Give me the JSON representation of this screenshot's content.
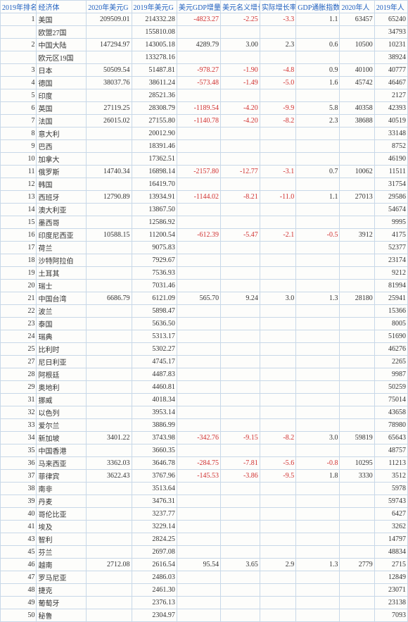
{
  "columns": [
    "2019年排名",
    "经济体",
    "2020年美元G",
    "2019年美元G",
    "美元GDP增量",
    "美元名义增长",
    "实际增长率",
    "GDP通胀指数",
    "2020年人",
    "2019年人"
  ],
  "column_colors": "#2060c0",
  "border_color": "#c8d8e8",
  "background_color": "#fdfdfb",
  "negative_color": "#d03030",
  "highlight_names": [
    "中国大陆",
    "中国台湾",
    "中国香港"
  ],
  "rows": [
    {
      "rank": 1,
      "name": "美国",
      "g2020": "209509.01",
      "g2019": "214332.28",
      "diff": "-4823.27",
      "nom": "-2.25",
      "real": "-3.3",
      "defl": "1.1",
      "pc20": "63457",
      "pc19": "65240"
    },
    {
      "rank": "",
      "name": "欧盟27国",
      "g2020": "",
      "g2019": "155810.08",
      "diff": "",
      "nom": "",
      "real": "",
      "defl": "",
      "pc20": "",
      "pc19": "34793"
    },
    {
      "rank": 2,
      "name": "中国大陆",
      "g2020": "147294.97",
      "g2019": "143005.18",
      "diff": "4289.79",
      "nom": "3.00",
      "real": "2.3",
      "defl": "0.6",
      "pc20": "10500",
      "pc19": "10231"
    },
    {
      "rank": "",
      "name": "欧元区19国",
      "g2020": "",
      "g2019": "133278.16",
      "diff": "",
      "nom": "",
      "real": "",
      "defl": "",
      "pc20": "",
      "pc19": "38924"
    },
    {
      "rank": 3,
      "name": "日本",
      "g2020": "50509.54",
      "g2019": "51487.81",
      "diff": "-978.27",
      "nom": "-1.90",
      "real": "-4.8",
      "defl": "0.9",
      "pc20": "40100",
      "pc19": "40777"
    },
    {
      "rank": 4,
      "name": "德国",
      "g2020": "38037.76",
      "g2019": "38611.24",
      "diff": "-573.48",
      "nom": "-1.49",
      "real": "-5.0",
      "defl": "1.6",
      "pc20": "45742",
      "pc19": "46467"
    },
    {
      "rank": 5,
      "name": "印度",
      "g2020": "",
      "g2019": "28521.36",
      "diff": "",
      "nom": "",
      "real": "",
      "defl": "",
      "pc20": "",
      "pc19": "2127"
    },
    {
      "rank": 6,
      "name": "英国",
      "g2020": "27119.25",
      "g2019": "28308.79",
      "diff": "-1189.54",
      "nom": "-4.20",
      "real": "-9.9",
      "defl": "5.8",
      "pc20": "40358",
      "pc19": "42393"
    },
    {
      "rank": 7,
      "name": "法国",
      "g2020": "26015.02",
      "g2019": "27155.80",
      "diff": "-1140.78",
      "nom": "-4.20",
      "real": "-8.2",
      "defl": "2.3",
      "pc20": "38688",
      "pc19": "40519"
    },
    {
      "rank": 8,
      "name": "意大利",
      "g2020": "",
      "g2019": "20012.90",
      "diff": "",
      "nom": "",
      "real": "",
      "defl": "",
      "pc20": "",
      "pc19": "33148"
    },
    {
      "rank": 9,
      "name": "巴西",
      "g2020": "",
      "g2019": "18391.46",
      "diff": "",
      "nom": "",
      "real": "",
      "defl": "",
      "pc20": "",
      "pc19": "8752"
    },
    {
      "rank": 10,
      "name": "加拿大",
      "g2020": "",
      "g2019": "17362.51",
      "diff": "",
      "nom": "",
      "real": "",
      "defl": "",
      "pc20": "",
      "pc19": "46190"
    },
    {
      "rank": 11,
      "name": "俄罗斯",
      "g2020": "14740.34",
      "g2019": "16898.14",
      "diff": "-2157.80",
      "nom": "-12.77",
      "real": "-3.1",
      "defl": "0.7",
      "pc20": "10062",
      "pc19": "11511"
    },
    {
      "rank": 12,
      "name": "韩国",
      "g2020": "",
      "g2019": "16419.70",
      "diff": "",
      "nom": "",
      "real": "",
      "defl": "",
      "pc20": "",
      "pc19": "31754"
    },
    {
      "rank": 13,
      "name": "西班牙",
      "g2020": "12790.89",
      "g2019": "13934.91",
      "diff": "-1144.02",
      "nom": "-8.21",
      "real": "-11.0",
      "defl": "1.1",
      "pc20": "27013",
      "pc19": "29586"
    },
    {
      "rank": 14,
      "name": "澳大利亚",
      "g2020": "",
      "g2019": "13867.50",
      "diff": "",
      "nom": "",
      "real": "",
      "defl": "",
      "pc20": "",
      "pc19": "54674"
    },
    {
      "rank": 15,
      "name": "墨西哥",
      "g2020": "",
      "g2019": "12586.92",
      "diff": "",
      "nom": "",
      "real": "",
      "defl": "",
      "pc20": "",
      "pc19": "9995"
    },
    {
      "rank": 16,
      "name": "印度尼西亚",
      "g2020": "10588.15",
      "g2019": "11200.54",
      "diff": "-612.39",
      "nom": "-5.47",
      "real": "-2.1",
      "defl": "-0.5",
      "pc20": "3912",
      "pc19": "4175"
    },
    {
      "rank": 17,
      "name": "荷兰",
      "g2020": "",
      "g2019": "9075.83",
      "diff": "",
      "nom": "",
      "real": "",
      "defl": "",
      "pc20": "",
      "pc19": "52377"
    },
    {
      "rank": 18,
      "name": "沙特阿拉伯",
      "g2020": "",
      "g2019": "7929.67",
      "diff": "",
      "nom": "",
      "real": "",
      "defl": "",
      "pc20": "",
      "pc19": "23174"
    },
    {
      "rank": 19,
      "name": "土耳其",
      "g2020": "",
      "g2019": "7536.93",
      "diff": "",
      "nom": "",
      "real": "",
      "defl": "",
      "pc20": "",
      "pc19": "9212"
    },
    {
      "rank": 20,
      "name": "瑞士",
      "g2020": "",
      "g2019": "7031.46",
      "diff": "",
      "nom": "",
      "real": "",
      "defl": "",
      "pc20": "",
      "pc19": "81994"
    },
    {
      "rank": 21,
      "name": "中国台湾",
      "g2020": "6686.79",
      "g2019": "6121.09",
      "diff": "565.70",
      "nom": "9.24",
      "real": "3.0",
      "defl": "1.3",
      "pc20": "28180",
      "pc19": "25941"
    },
    {
      "rank": 22,
      "name": "波兰",
      "g2020": "",
      "g2019": "5898.47",
      "diff": "",
      "nom": "",
      "real": "",
      "defl": "",
      "pc20": "",
      "pc19": "15366"
    },
    {
      "rank": 23,
      "name": "泰国",
      "g2020": "",
      "g2019": "5636.50",
      "diff": "",
      "nom": "",
      "real": "",
      "defl": "",
      "pc20": "",
      "pc19": "8005"
    },
    {
      "rank": 24,
      "name": "瑞典",
      "g2020": "",
      "g2019": "5313.17",
      "diff": "",
      "nom": "",
      "real": "",
      "defl": "",
      "pc20": "",
      "pc19": "51690"
    },
    {
      "rank": 25,
      "name": "比利时",
      "g2020": "",
      "g2019": "5302.27",
      "diff": "",
      "nom": "",
      "real": "",
      "defl": "",
      "pc20": "",
      "pc19": "46276"
    },
    {
      "rank": 27,
      "name": "尼日利亚",
      "g2020": "",
      "g2019": "4745.17",
      "diff": "",
      "nom": "",
      "real": "",
      "defl": "",
      "pc20": "",
      "pc19": "2265"
    },
    {
      "rank": 28,
      "name": "阿根廷",
      "g2020": "",
      "g2019": "4487.83",
      "diff": "",
      "nom": "",
      "real": "",
      "defl": "",
      "pc20": "",
      "pc19": "9987"
    },
    {
      "rank": 29,
      "name": "奥地利",
      "g2020": "",
      "g2019": "4460.81",
      "diff": "",
      "nom": "",
      "real": "",
      "defl": "",
      "pc20": "",
      "pc19": "50259"
    },
    {
      "rank": 31,
      "name": "挪威",
      "g2020": "",
      "g2019": "4018.34",
      "diff": "",
      "nom": "",
      "real": "",
      "defl": "",
      "pc20": "",
      "pc19": "75014"
    },
    {
      "rank": 32,
      "name": "以色列",
      "g2020": "",
      "g2019": "3953.14",
      "diff": "",
      "nom": "",
      "real": "",
      "defl": "",
      "pc20": "",
      "pc19": "43658"
    },
    {
      "rank": 33,
      "name": "爱尔兰",
      "g2020": "",
      "g2019": "3886.99",
      "diff": "",
      "nom": "",
      "real": "",
      "defl": "",
      "pc20": "",
      "pc19": "78980"
    },
    {
      "rank": 34,
      "name": "新加坡",
      "g2020": "3401.22",
      "g2019": "3743.98",
      "diff": "-342.76",
      "nom": "-9.15",
      "real": "-8.2",
      "defl": "3.0",
      "pc20": "59819",
      "pc19": "65643"
    },
    {
      "rank": 35,
      "name": "中国香港",
      "g2020": "",
      "g2019": "3660.35",
      "diff": "",
      "nom": "",
      "real": "",
      "defl": "",
      "pc20": "",
      "pc19": "48757"
    },
    {
      "rank": 36,
      "name": "马来西亚",
      "g2020": "3362.03",
      "g2019": "3646.78",
      "diff": "-284.75",
      "nom": "-7.81",
      "real": "-5.6",
      "defl": "-0.8",
      "pc20": "10295",
      "pc19": "11213"
    },
    {
      "rank": 37,
      "name": "菲律宾",
      "g2020": "3622.43",
      "g2019": "3767.96",
      "diff": "-145.53",
      "nom": "-3.86",
      "real": "-9.5",
      "defl": "1.8",
      "pc20": "3330",
      "pc19": "3512"
    },
    {
      "rank": 38,
      "name": "南非",
      "g2020": "",
      "g2019": "3513.64",
      "diff": "",
      "nom": "",
      "real": "",
      "defl": "",
      "pc20": "",
      "pc19": "5978"
    },
    {
      "rank": 39,
      "name": "丹麦",
      "g2020": "",
      "g2019": "3476.31",
      "diff": "",
      "nom": "",
      "real": "",
      "defl": "",
      "pc20": "",
      "pc19": "59743"
    },
    {
      "rank": 40,
      "name": "哥伦比亚",
      "g2020": "",
      "g2019": "3237.77",
      "diff": "",
      "nom": "",
      "real": "",
      "defl": "",
      "pc20": "",
      "pc19": "6427"
    },
    {
      "rank": 41,
      "name": "埃及",
      "g2020": "",
      "g2019": "3229.14",
      "diff": "",
      "nom": "",
      "real": "",
      "defl": "",
      "pc20": "",
      "pc19": "3262"
    },
    {
      "rank": 43,
      "name": "智利",
      "g2020": "",
      "g2019": "2824.25",
      "diff": "",
      "nom": "",
      "real": "",
      "defl": "",
      "pc20": "",
      "pc19": "14797"
    },
    {
      "rank": 45,
      "name": "芬兰",
      "g2020": "",
      "g2019": "2697.08",
      "diff": "",
      "nom": "",
      "real": "",
      "defl": "",
      "pc20": "",
      "pc19": "48834"
    },
    {
      "rank": 46,
      "name": "越南",
      "g2020": "2712.08",
      "g2019": "2616.54",
      "diff": "95.54",
      "nom": "3.65",
      "real": "2.9",
      "defl": "1.3",
      "pc20": "2779",
      "pc19": "2715"
    },
    {
      "rank": 47,
      "name": "罗马尼亚",
      "g2020": "",
      "g2019": "2486.03",
      "diff": "",
      "nom": "",
      "real": "",
      "defl": "",
      "pc20": "",
      "pc19": "12849"
    },
    {
      "rank": 48,
      "name": "捷克",
      "g2020": "",
      "g2019": "2461.30",
      "diff": "",
      "nom": "",
      "real": "",
      "defl": "",
      "pc20": "",
      "pc19": "23071"
    },
    {
      "rank": 49,
      "name": "葡萄牙",
      "g2020": "",
      "g2019": "2376.13",
      "diff": "",
      "nom": "",
      "real": "",
      "defl": "",
      "pc20": "",
      "pc19": "23138"
    },
    {
      "rank": 50,
      "name": "秘鲁",
      "g2020": "",
      "g2019": "2304.97",
      "diff": "",
      "nom": "",
      "real": "",
      "defl": "",
      "pc20": "",
      "pc19": "7093"
    }
  ]
}
